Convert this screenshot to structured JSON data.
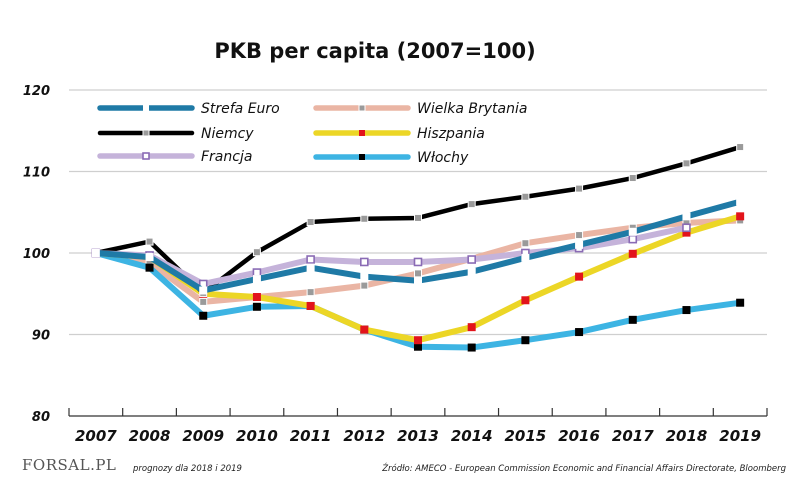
{
  "chart_data": {
    "type": "line",
    "title": "PKB per capita (2007=100)",
    "xlabel": "",
    "ylabel": "",
    "categories": [
      "2007",
      "2008",
      "2009",
      "2010",
      "2011",
      "2012",
      "2013",
      "2014",
      "2015",
      "2016",
      "2017",
      "2018",
      "2019"
    ],
    "ylim": [
      80,
      120
    ],
    "yticks": [
      80,
      90,
      100,
      110,
      120
    ],
    "grid": true,
    "legend": "top-left, two columns inside plot",
    "series": [
      {
        "name": "Strefa Euro",
        "color": "#1f7aa6",
        "marker": "white-square",
        "dashed": true,
        "values": [
          100,
          99.5,
          95.4,
          96.8,
          98.2,
          97.1,
          96.6,
          97.7,
          99.4,
          101.0,
          102.6,
          104.5,
          106.3
        ]
      },
      {
        "name": "Niemcy",
        "color": "#000000",
        "marker": "gray-square",
        "values": [
          100,
          101.4,
          95.1,
          100.1,
          103.8,
          104.2,
          104.3,
          106.0,
          106.9,
          107.9,
          109.2,
          111.0,
          113.0
        ]
      },
      {
        "name": "Francja",
        "color": "#c5b3da",
        "marker": "purple-hollow-square",
        "values": [
          100,
          99.7,
          96.2,
          97.6,
          99.2,
          98.9,
          98.9,
          99.2,
          100.0,
          100.6,
          101.7,
          103.1,
          null
        ]
      },
      {
        "name": "Wielka Brytania",
        "color": "#eab5a4",
        "marker": "gray-square",
        "values": [
          100,
          98.8,
          94.0,
          94.6,
          95.2,
          96.0,
          97.5,
          99.3,
          101.2,
          102.2,
          103.1,
          103.7,
          104.0
        ]
      },
      {
        "name": "Hiszpania",
        "color": "#ecd626",
        "marker": "red-square",
        "values": [
          100,
          99.5,
          95.0,
          94.6,
          93.5,
          90.6,
          89.3,
          90.9,
          94.2,
          97.1,
          99.9,
          102.5,
          104.5
        ]
      },
      {
        "name": "Włochy",
        "color": "#3db4e3",
        "marker": "black-square",
        "values": [
          100,
          98.2,
          92.3,
          93.4,
          93.5,
          90.6,
          88.5,
          88.4,
          89.3,
          90.3,
          91.8,
          93.0,
          93.9
        ]
      }
    ]
  },
  "footer": {
    "logo": "FORSAL.PL",
    "note": "prognozy dla 2018 i 2019",
    "source": "Źródło: AMECO - European Commission Economic and Financial Affairs Directorate, Bloomberg"
  }
}
